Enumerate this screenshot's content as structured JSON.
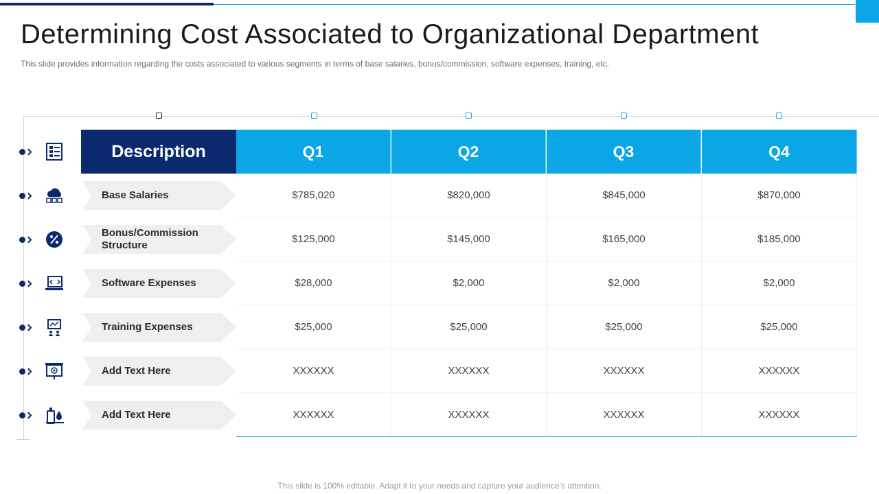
{
  "slide": {
    "title": "Determining Cost Associated to Organizational Department",
    "subtitle": "This slide provides information regarding the costs associated to various segments in terms of base salaries, bonus/commission, software expenses, training, etc.",
    "footer": "This slide is 100% editable. Adapt it to your needs and capture your audience’s attention."
  },
  "table": {
    "headers": [
      "Description",
      "Q1",
      "Q2",
      "Q3",
      "Q4"
    ],
    "rows": [
      {
        "label": "Base Salaries",
        "icon": "cloud-network-icon",
        "values": [
          "$785,020",
          "$820,000",
          "$845,000",
          "$870,000"
        ]
      },
      {
        "label": "Bonus/Commission Structure",
        "icon": "percent-badge-icon",
        "values": [
          "$125,000",
          "$145,000",
          "$165,000",
          "$185,000"
        ]
      },
      {
        "label": "Software Expenses",
        "icon": "code-monitor-icon",
        "values": [
          "$28,000",
          "$2,000",
          "$2,000",
          "$2,000"
        ]
      },
      {
        "label": "Training Expenses",
        "icon": "presentation-board-icon",
        "values": [
          "$25,000",
          "$25,000",
          "$25,000",
          "$25,000"
        ]
      },
      {
        "label": "Add  Text Here",
        "icon": "target-board-icon",
        "values": [
          "XXXXXX",
          "XXXXXX",
          "XXXXXX",
          "XXXXXX"
        ]
      },
      {
        "label": "Add  Text Here",
        "icon": "hand-sanitizer-icon",
        "values": [
          "XXXXXX",
          "XXXXXX",
          "XXXXXX",
          "XXXXXX"
        ]
      }
    ],
    "header_icon": "checklist-icon"
  },
  "colors": {
    "navy": "#0b2a6e",
    "sky": "#0aa6e6",
    "label_bg": "#efefef"
  }
}
